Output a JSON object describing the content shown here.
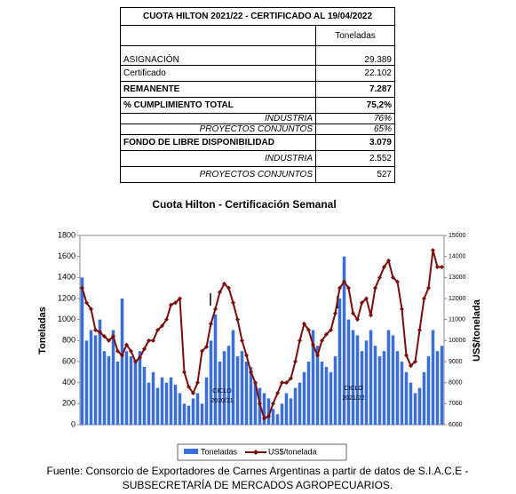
{
  "table": {
    "title": "CUOTA HILTON 2021/22  -  CERTIFICADO AL 19/04/2022",
    "header": "Toneladas",
    "rows": [
      [
        "ASIGNACIÓN",
        "29.389"
      ],
      [
        "Certificado",
        "22.102"
      ],
      [
        "REMANENTE",
        "7.287"
      ],
      [
        "% CUMPLIMIENTO TOTAL",
        "75,2%"
      ],
      [
        "INDUSTRIA",
        "76%"
      ],
      [
        "PROYECTOS CONJUNTOS",
        "65%"
      ],
      [
        "FONDO DE LIBRE DISPONIBILIDAD",
        "3.079"
      ],
      [
        "INDUSTRIA",
        "2.552"
      ],
      [
        "PROYECTOS CONJUNTOS",
        "527"
      ]
    ]
  },
  "chart_data": {
    "type": "bar-line",
    "title": "Cuota Hilton - Certificación Semanal",
    "ylabel": "Toneladas",
    "y2label": "US$/tonelada",
    "ylim": [
      0,
      1800
    ],
    "yticks": [
      0,
      200,
      400,
      600,
      800,
      1000,
      1200,
      1400,
      1600,
      1800
    ],
    "y2lim": [
      6000,
      15000
    ],
    "y2ticks": [
      6000,
      7000,
      8000,
      9000,
      10000,
      11000,
      12000,
      13000,
      14000,
      15000
    ],
    "series": [
      {
        "name": "Toneladas",
        "color": "#3a6fd8",
        "values": [
          1400,
          800,
          900,
          850,
          1000,
          700,
          650,
          900,
          600,
          1200,
          700,
          650,
          600,
          700,
          550,
          400,
          500,
          350,
          450,
          400,
          450,
          380,
          300,
          200,
          180,
          250,
          300,
          200,
          450,
          800,
          1050,
          600,
          700,
          750,
          900,
          650,
          700,
          600,
          550,
          400,
          350,
          300,
          250,
          150,
          100,
          200,
          300,
          250,
          350,
          400,
          500,
          600,
          900,
          750,
          600,
          550,
          500,
          650,
          1200,
          1600,
          1000,
          900,
          850,
          700,
          800,
          900,
          750,
          650,
          700,
          900,
          850,
          700,
          600,
          500,
          400,
          300,
          350,
          500,
          650,
          900,
          700,
          750
        ]
      },
      {
        "name": "US$/tonelada",
        "color": "#7a0c0c",
        "axis": "y2",
        "values": [
          12500,
          11800,
          11500,
          10500,
          10400,
          10200,
          10000,
          10200,
          9500,
          9300,
          9800,
          9500,
          9000,
          9200,
          9600,
          10000,
          10000,
          10500,
          10700,
          11000,
          11700,
          11800,
          12000,
          8500,
          7800,
          7500,
          8000,
          9500,
          9700,
          10800,
          11500,
          12300,
          12700,
          12500,
          11800,
          11000,
          10000,
          9300,
          8500,
          8000,
          7000,
          6300,
          6400,
          7000,
          7500,
          8000,
          8000,
          8200,
          9000,
          10000,
          10800,
          10500,
          9800,
          9300,
          10000,
          10300,
          10500,
          11300,
          12500,
          12800,
          12500,
          11300,
          11000,
          11800,
          12000,
          11200,
          12500,
          13000,
          13500,
          13800,
          13000,
          12800,
          11500,
          9300,
          8800,
          9000,
          10500,
          12000,
          12500,
          14300,
          13500,
          13500
        ]
      }
    ],
    "annotations": [
      [
        "CICLO",
        "2020/21"
      ],
      [
        "CICLO",
        "2021/22"
      ]
    ]
  },
  "source": [
    "Fuente: Consorcio de Exportadores de Carnes Argentinas a partir de datos de S.I.A.C.E -",
    "SUBSECRETARÍA DE MERCADOS AGROPECUARIOS."
  ]
}
